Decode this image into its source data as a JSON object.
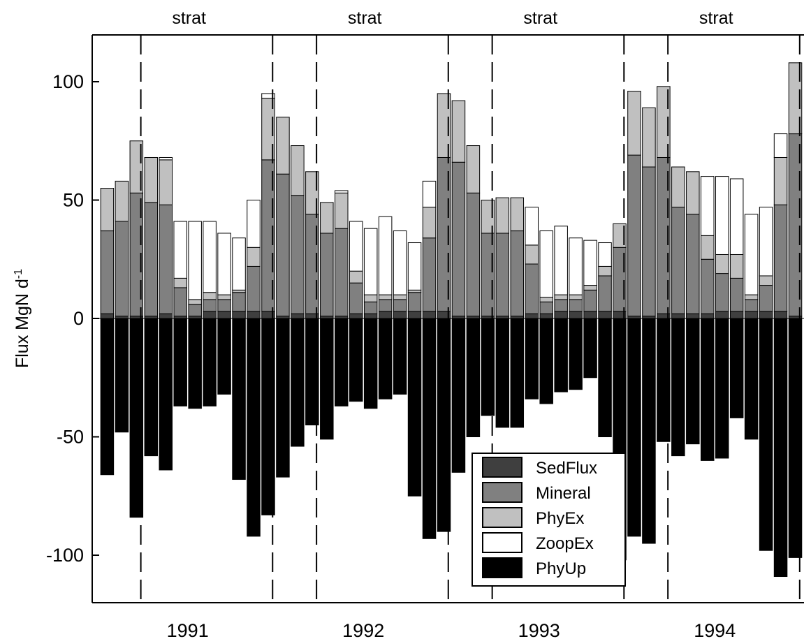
{
  "chart_data": {
    "type": "bar",
    "stacked": true,
    "ylabel_main": "Flux MgN d",
    "ylabel_sup": "-1",
    "ylim": [
      -120,
      120
    ],
    "yticks": [
      100,
      50,
      0,
      -50,
      -100
    ],
    "ytick_labels": [
      "100",
      "50",
      "0",
      "-50",
      "-100"
    ],
    "xlim": [
      0.5,
      48.5
    ],
    "year_labels": [
      {
        "label": "1991",
        "center": 6.5
      },
      {
        "label": "1992",
        "center": 18.5
      },
      {
        "label": "1993",
        "center": 30.5
      },
      {
        "label": "1994",
        "center": 42.5
      }
    ],
    "period_markers": [
      3.3,
      12.3,
      15.3,
      24.3,
      27.3,
      36.3,
      39.3,
      48.3
    ],
    "period_labels": [
      {
        "label": "strat",
        "center": 6.5
      },
      {
        "label": "strat",
        "center": 18.5
      },
      {
        "label": "strat",
        "center": 30.5
      },
      {
        "label": "strat",
        "center": 42.5
      }
    ],
    "legend": {
      "placement": "bottom-right",
      "entries": [
        {
          "name": "SedFlux",
          "color": "#3f3f3f"
        },
        {
          "name": "Mineral",
          "color": "#808080"
        },
        {
          "name": "PhyEx",
          "color": "#c0c0c0"
        },
        {
          "name": "ZoopEx",
          "color": "#ffffff"
        },
        {
          "name": "PhyUp",
          "color": "#000000"
        }
      ]
    },
    "series": [
      {
        "name": "SedFlux",
        "color": "#3f3f3f",
        "values": [
          2,
          1,
          1,
          1,
          2,
          1,
          1,
          3,
          3,
          3,
          3,
          3,
          1,
          2,
          2,
          1,
          1,
          2,
          2,
          3,
          3,
          3,
          3,
          3,
          1,
          1,
          1,
          1,
          1,
          2,
          2,
          3,
          3,
          3,
          3,
          3,
          1,
          1,
          2,
          2,
          2,
          2,
          3,
          3,
          3,
          3,
          3,
          1
        ]
      },
      {
        "name": "Mineral",
        "color": "#808080",
        "values": [
          35,
          40,
          52,
          48,
          46,
          12,
          5,
          5,
          5,
          8,
          19,
          64,
          60,
          50,
          42,
          35,
          37,
          13,
          5,
          5,
          5,
          8,
          31,
          65,
          65,
          52,
          35,
          35,
          36,
          21,
          5,
          5,
          5,
          9,
          15,
          27,
          68,
          63,
          66,
          45,
          42,
          23,
          16,
          14,
          5,
          11,
          45,
          77
        ]
      },
      {
        "name": "PhyEx",
        "color": "#c0c0c0",
        "values": [
          18,
          17,
          22,
          19,
          19,
          4,
          2,
          3,
          2,
          1,
          8,
          26,
          24,
          21,
          18,
          13,
          15,
          5,
          3,
          2,
          2,
          1,
          13,
          27,
          26,
          20,
          14,
          15,
          14,
          8,
          2,
          2,
          2,
          2,
          4,
          10,
          27,
          25,
          30,
          17,
          18,
          10,
          8,
          10,
          2,
          4,
          20,
          30
        ]
      },
      {
        "name": "ZoopEx",
        "color": "#ffffff",
        "values": [
          0,
          0,
          0,
          0,
          1,
          24,
          33,
          30,
          26,
          22,
          20,
          2,
          0,
          0,
          0,
          0,
          1,
          21,
          28,
          33,
          27,
          20,
          11,
          0,
          0,
          0,
          0,
          0,
          0,
          16,
          28,
          29,
          24,
          19,
          10,
          0,
          0,
          0,
          0,
          0,
          0,
          25,
          33,
          32,
          34,
          29,
          10,
          0
        ]
      },
      {
        "name": "PhyUp",
        "color": "#000000",
        "values": [
          -66,
          -48,
          -84,
          -58,
          -64,
          -37,
          -38,
          -37,
          -32,
          -68,
          -92,
          -83,
          -67,
          -54,
          -45,
          -51,
          -37,
          -35,
          -38,
          -34,
          -32,
          -75,
          -93,
          -90,
          -65,
          -50,
          -41,
          -46,
          -46,
          -34,
          -36,
          -31,
          -30,
          -25,
          -50,
          -102,
          -92,
          -95,
          -52,
          -58,
          -53,
          -60,
          -59,
          -42,
          -51,
          -98,
          -109,
          -101
        ]
      }
    ]
  }
}
